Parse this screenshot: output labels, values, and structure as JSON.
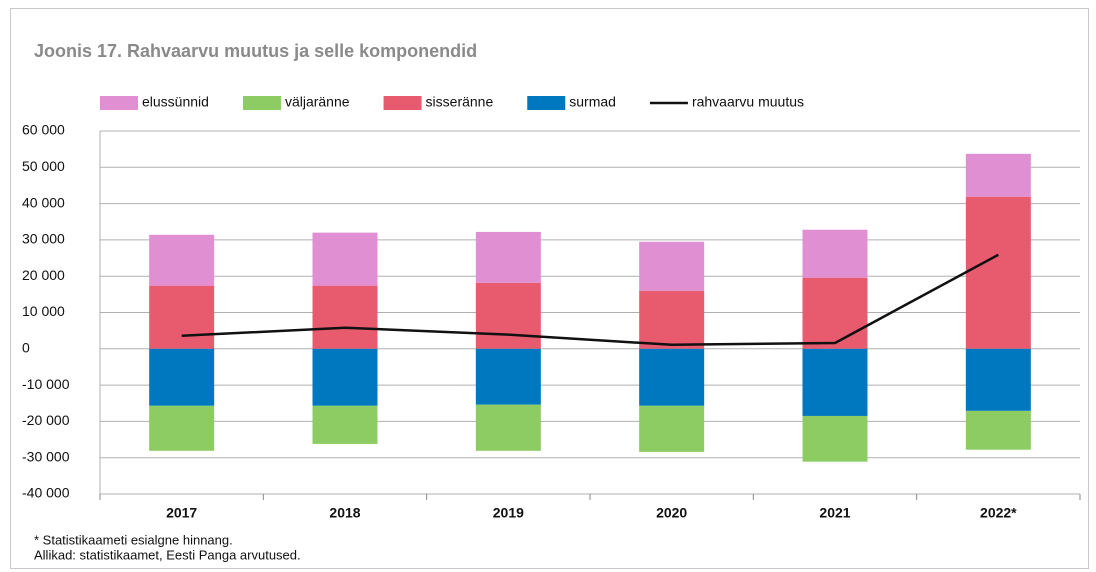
{
  "chart_data": {
    "type": "bar",
    "stacked": true,
    "title": "Joonis 17. Rahvaarvu muutus ja selle komponendid",
    "categories": [
      "2017",
      "2018",
      "2019",
      "2020",
      "2021",
      "2022*"
    ],
    "series": [
      {
        "name": "elussünnid",
        "color": "#e08fd3",
        "values": [
          14000,
          14600,
          14000,
          13500,
          13200,
          11800
        ]
      },
      {
        "name": "väljaränne",
        "color": "#8ccc63",
        "values": [
          -12400,
          -10500,
          -12700,
          -12700,
          -12600,
          -10700
        ]
      },
      {
        "name": "sisseränne",
        "color": "#e85b6e",
        "values": [
          17400,
          17400,
          18200,
          16000,
          19600,
          41900
        ]
      },
      {
        "name": "surmad",
        "color": "#0078bf",
        "values": [
          -15700,
          -15700,
          -15400,
          -15700,
          -18500,
          -17100
        ]
      },
      {
        "name": "rahvaarvu muutus",
        "color": "#111111",
        "type": "line",
        "values": [
          3600,
          5800,
          3900,
          1100,
          1600,
          25900
        ]
      }
    ],
    "ylim": [
      -40000,
      60000
    ],
    "yticks": [
      {
        "value": -40000,
        "label": "-40 000"
      },
      {
        "value": -30000,
        "label": "-30 000"
      },
      {
        "value": -20000,
        "label": "-20 000"
      },
      {
        "value": -10000,
        "label": "-10 000"
      },
      0,
      {
        "value": 10000,
        "label": "10 000"
      },
      {
        "value": 20000,
        "label": "20 000"
      },
      {
        "value": 30000,
        "label": "30 000"
      },
      {
        "value": 40000,
        "label": "40 000"
      },
      {
        "value": 50000,
        "label": "50 000"
      },
      {
        "value": 60000,
        "label": "60 000"
      }
    ],
    "grid": true,
    "legend": "top",
    "footnotes": [
      "* Statistikaameti esialgne hinnang.",
      "Allikad: statistikaamet, Eesti Panga arvutused."
    ]
  }
}
